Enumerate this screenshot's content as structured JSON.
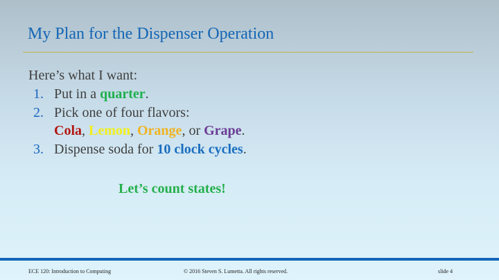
{
  "slide": {
    "title": "My Plan for the Dispenser Operation",
    "intro": "Here’s what I want:",
    "items": [
      {
        "number": "1.",
        "text_before": "Put in a ",
        "highlight": "quarter",
        "text_after": "."
      },
      {
        "number": "2.",
        "line1": "Pick one of four flavors:",
        "flavors": [
          "Cola",
          "Lemon",
          "Orange",
          "Grape"
        ],
        "sep1": ", ",
        "sep2": ", ",
        "sep3": ", or ",
        "end": "."
      },
      {
        "number": "3.",
        "text_before": "Dispense soda for ",
        "highlight": "10 clock cycles",
        "text_after": "."
      }
    ],
    "callout": "Let’s count states!"
  },
  "footer": {
    "course": "ECE 120: Introduction to Computing",
    "copyright": "© 2016 Steven S. Lumetta.  All rights reserved.",
    "slide_number": "slide 4"
  },
  "colors": {
    "title": "#1466b4",
    "quarter": "#1fb04e",
    "cola": "#b31712",
    "lemon": "#f2ef1b",
    "orange": "#f0b323",
    "grape": "#6b3b94",
    "cycles": "#1a6ec0",
    "callout": "#25b04c",
    "footer_bar": "#1565b8"
  }
}
